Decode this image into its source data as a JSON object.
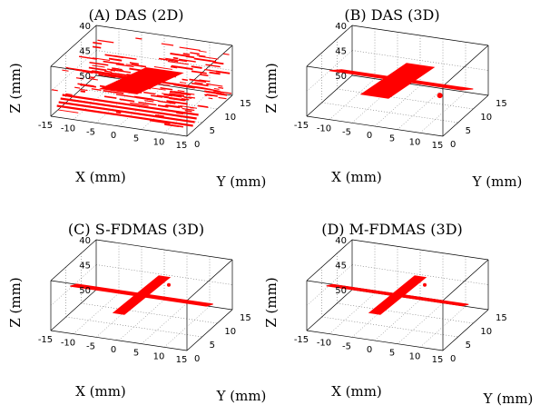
{
  "chart_data": [
    {
      "type": "scatter",
      "title": "(A) DAS (2D)",
      "xlabel": "X (mm)",
      "ylabel": "Y (mm)",
      "zlabel": "Z (mm)",
      "xticks": [
        "-15",
        "-10",
        "-5",
        "0",
        "5",
        "10",
        "15"
      ],
      "yticks": [
        "0",
        "5",
        "10",
        "15"
      ],
      "zticks": [
        "40",
        "45",
        "50"
      ],
      "xlim": [
        -15,
        15
      ],
      "ylim": [
        0,
        15
      ],
      "zlim": [
        40,
        50
      ],
      "grid": true,
      "series": [
        {
          "color": "#ff0000",
          "shape": "cross-shaped wire target, streaky reconstruction with strong side-lobe artefacts"
        }
      ]
    },
    {
      "type": "scatter",
      "title": "(B) DAS (3D)",
      "xlabel": "X (mm)",
      "ylabel": "Y (mm)",
      "zlabel": "Z (mm)",
      "xticks": [
        "-15",
        "-10",
        "-5",
        "0",
        "5",
        "10",
        "15"
      ],
      "yticks": [
        "0",
        "5",
        "10",
        "15"
      ],
      "zticks": [
        "40",
        "45",
        "50"
      ],
      "xlim": [
        -15,
        15
      ],
      "ylim": [
        0,
        15
      ],
      "zlim": [
        40,
        50
      ],
      "grid": true,
      "series": [
        {
          "color": "#ff0000",
          "shape": "cross-shaped wire target, thick blobs"
        }
      ]
    },
    {
      "type": "scatter",
      "title": "(C) S-FDMAS (3D)",
      "xlabel": "X (mm)",
      "ylabel": "Y (mm)",
      "zlabel": "Z (mm)",
      "xticks": [
        "-15",
        "-10",
        "-5",
        "0",
        "5",
        "10",
        "15"
      ],
      "yticks": [
        "0",
        "5",
        "10",
        "15"
      ],
      "zticks": [
        "40",
        "45",
        "50"
      ],
      "xlim": [
        -15,
        15
      ],
      "ylim": [
        0,
        15
      ],
      "zlim": [
        40,
        50
      ],
      "grid": true,
      "series": [
        {
          "color": "#ff0000",
          "shape": "cross-shaped wire target, thin clean wires"
        }
      ]
    },
    {
      "type": "scatter",
      "title": "(D) M-FDMAS (3D)",
      "xlabel": "X (mm)",
      "ylabel": "Y (mm)",
      "zlabel": "Z (mm)",
      "xticks": [
        "-15",
        "-10",
        "-5",
        "0",
        "5",
        "10",
        "15"
      ],
      "yticks": [
        "0",
        "5",
        "10",
        "15"
      ],
      "zticks": [
        "40",
        "45",
        "50"
      ],
      "xlim": [
        -15,
        15
      ],
      "ylim": [
        0,
        15
      ],
      "zlim": [
        40,
        50
      ],
      "grid": true,
      "series": [
        {
          "color": "#ff0000",
          "shape": "cross-shaped wire target, thin clean wires"
        }
      ]
    }
  ]
}
